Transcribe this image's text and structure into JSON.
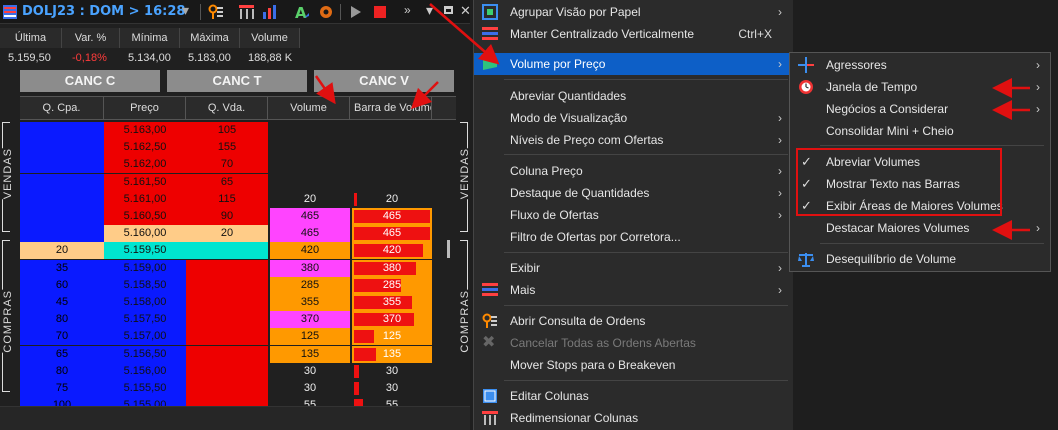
{
  "window": {
    "title": "DOLJ23 : DOM > 16:28"
  },
  "quote": {
    "headers": [
      "Última",
      "Var. %",
      "Mínima",
      "Máxima",
      "Volume"
    ],
    "values": [
      "5.159,50",
      "-0,18%",
      "5.134,00",
      "5.183,00",
      "188,88 K"
    ]
  },
  "cancel_buttons": [
    "CANC C",
    "CANC T",
    "CANC V"
  ],
  "grid": {
    "columns": [
      "Q. Cpa.",
      "Preço",
      "Q. Vda.",
      "Volume",
      "Barra de Volume"
    ],
    "side_labels": {
      "top": "VENDAS",
      "bottom": "COMPRAS"
    },
    "rows": [
      {
        "qcpa": "",
        "preco": "5.163,00",
        "qvda": "105",
        "vol": "",
        "bar": ""
      },
      {
        "qcpa": "",
        "preco": "5.162,50",
        "qvda": "155",
        "vol": "",
        "bar": ""
      },
      {
        "qcpa": "",
        "preco": "5.162,00",
        "qvda": "70",
        "vol": "",
        "bar": ""
      },
      {
        "qcpa": "",
        "preco": "5.161,50",
        "qvda": "65",
        "vol": "",
        "bar": ""
      },
      {
        "qcpa": "",
        "preco": "5.161,00",
        "qvda": "115",
        "vol": "20",
        "bar": "20"
      },
      {
        "qcpa": "",
        "preco": "5.160,50",
        "qvda": "90",
        "vol": "465",
        "bar": "465"
      },
      {
        "qcpa": "",
        "preco": "5.160,00",
        "qvda": "20",
        "vol": "465",
        "bar": "465"
      },
      {
        "qcpa": "20",
        "preco": "5.159,50",
        "qvda": "",
        "vol": "420",
        "bar": "420"
      },
      {
        "qcpa": "35",
        "preco": "5.159,00",
        "qvda": "",
        "vol": "380",
        "bar": "380"
      },
      {
        "qcpa": "60",
        "preco": "5.158,50",
        "qvda": "",
        "vol": "285",
        "bar": "285"
      },
      {
        "qcpa": "45",
        "preco": "5.158,00",
        "qvda": "",
        "vol": "355",
        "bar": "355"
      },
      {
        "qcpa": "80",
        "preco": "5.157,50",
        "qvda": "",
        "vol": "370",
        "bar": "370"
      },
      {
        "qcpa": "70",
        "preco": "5.157,00",
        "qvda": "",
        "vol": "125",
        "bar": "125"
      },
      {
        "qcpa": "65",
        "preco": "5.156,50",
        "qvda": "",
        "vol": "135",
        "bar": "135"
      },
      {
        "qcpa": "80",
        "preco": "5.156,00",
        "qvda": "",
        "vol": "30",
        "bar": "30"
      },
      {
        "qcpa": "75",
        "preco": "5.155,50",
        "qvda": "",
        "vol": "30",
        "bar": "30"
      },
      {
        "qcpa": "100",
        "preco": "5.155,00",
        "qvda": "",
        "vol": "55",
        "bar": "55"
      }
    ]
  },
  "menu": {
    "items": [
      {
        "label": "Agrupar Visão por Papel",
        "arrow": "›"
      },
      {
        "label": "Manter Centralizado Verticalmente",
        "shortcut": "Ctrl+X"
      },
      {
        "label": "Volume por Preço",
        "arrow": "›"
      },
      {
        "label": "Abreviar Quantidades"
      },
      {
        "label": "Modo de Visualização",
        "arrow": "›"
      },
      {
        "label": "Níveis de Preço com Ofertas",
        "arrow": "›"
      },
      {
        "label": "Coluna Preço",
        "arrow": "›"
      },
      {
        "label": "Destaque de Quantidades",
        "arrow": "›"
      },
      {
        "label": "Fluxo de Ofertas",
        "arrow": "›"
      },
      {
        "label": "Filtro de Ofertas por Corretora..."
      },
      {
        "label": "Exibir",
        "arrow": "›"
      },
      {
        "label": "Mais",
        "arrow": "›"
      },
      {
        "label": "Abrir Consulta de Ordens"
      },
      {
        "label": "Cancelar Todas as Ordens Abertas"
      },
      {
        "label": "Mover Stops para o Breakeven"
      },
      {
        "label": "Editar Colunas"
      },
      {
        "label": "Redimensionar Colunas"
      }
    ]
  },
  "submenu": {
    "items": [
      {
        "label": "Agressores",
        "arrow": "›"
      },
      {
        "label": "Janela de Tempo",
        "arrow": "›"
      },
      {
        "label": "Negócios a Considerar",
        "arrow": "›"
      },
      {
        "label": "Consolidar Mini + Cheio"
      },
      {
        "label": "Abreviar Volumes",
        "check": "✓"
      },
      {
        "label": "Mostrar Texto nas Barras",
        "check": "✓"
      },
      {
        "label": "Exibir Áreas de Maiores Volumes",
        "check": "✓"
      },
      {
        "label": "Destacar Maiores Volumes",
        "arrow": "›"
      },
      {
        "label": "Desequilíbrio de Volume"
      }
    ]
  },
  "colors": {
    "buy_blue": "#0a1aff",
    "sell_red": "#ee0000",
    "last_price": "#00e5d0",
    "highlight_orange": "#ffcc88",
    "volume_magenta": "#ff44ff",
    "volume_orange": "#ff9900",
    "menu_highlight": "#0d5fc7",
    "annotation_red": "#e01010"
  }
}
